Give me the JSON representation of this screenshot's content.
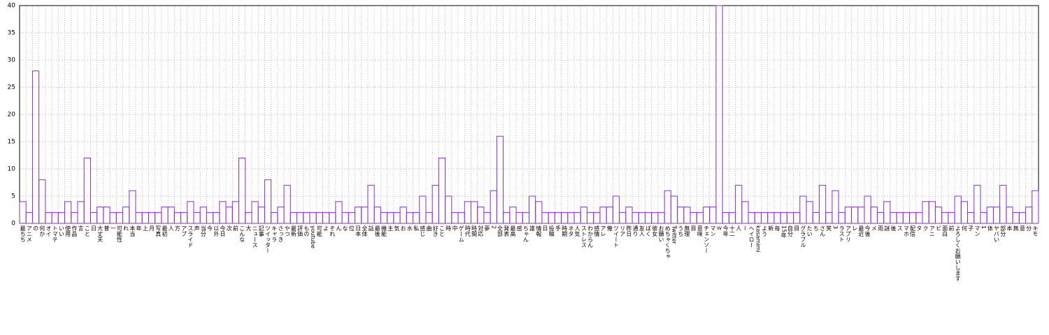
{
  "chart_data": {
    "type": "bar",
    "categories": [
      "最ちち",
      "アニメ",
      "の",
      "何か",
      "オイ",
      "トマテ",
      "いい",
      "使用",
      "作品",
      "言",
      "こと",
      "日",
      "大丈夫",
      "普",
      "一",
      "可能性",
      "れ",
      "本当",
      "年",
      "上",
      "月",
      "写真",
      "最初",
      "人",
      "方",
      "アプ",
      "スライド",
      "声",
      "当分",
      "今",
      "以外",
      "今日",
      "次",
      "前",
      "こんな",
      "大",
      "ニュース",
      "記事",
      "ツイッター",
      "キャラ",
      "さっき",
      "やつ",
      "最新",
      "評価",
      "もの",
      "youtube",
      "可能",
      "よ",
      "それ",
      "ん",
      "な",
      "位",
      "日本",
      "全体",
      "話",
      "最後",
      "機能",
      "主",
      "気",
      "お",
      "水",
      "私",
      "感じ",
      "曲",
      "好き",
      "こと",
      "時",
      "中",
      "ゲーム",
      "時代",
      "時間",
      "対応",
      "夢",
      "2",
      "全部",
      "発表",
      "最高",
      "感",
      "ちゃん",
      "誰",
      "情報",
      "日",
      "投稿",
      "手",
      "時期",
      "ネタ",
      "人気",
      "ストレス",
      "わからん",
      "感情",
      "アレ",
      "俺",
      "ツイート",
      "リア",
      "昨日",
      "通り",
      "友人",
      "ぼく",
      "彼女",
      "お願い",
      "めちゃくちゃ",
      "Twitter",
      "うち",
      "無理",
      "目",
      "意味",
      "チェンソー",
      "マン",
      "ｗ",
      "今年",
      "十二",
      "人",
      "ー",
      "ヘイロー",
      "kasamimi",
      "よう",
      "新",
      "毎",
      "15年",
      "自分",
      "目",
      "グラブル",
      "たい",
      "ち",
      "さん",
      "笑",
      "3",
      "ラスト",
      "アプリ",
      "レ",
      "最近",
      "今後",
      "メ",
      "雨",
      "謎",
      "後",
      "ス",
      "マホ",
      "配信",
      "タ",
      "ク",
      "アニ",
      "ビ",
      "面白",
      "前",
      "よろしくお願いします",
      "何",
      "子",
      "マン",
      "1",
      "体",
      "ヤバい",
      "部分",
      "本",
      "無",
      "意",
      "分",
      "キモ"
    ],
    "values": [
      4,
      2,
      28,
      8,
      2,
      2,
      2,
      4,
      2,
      4,
      12,
      2,
      3,
      3,
      2,
      2,
      3,
      6,
      2,
      2,
      2,
      2,
      3,
      3,
      2,
      2,
      4,
      2,
      3,
      2,
      2,
      4,
      3,
      4,
      12,
      2,
      4,
      3,
      8,
      2,
      3,
      7,
      2,
      2,
      2,
      2,
      2,
      2,
      2,
      4,
      2,
      2,
      3,
      3,
      7,
      3,
      2,
      2,
      2,
      3,
      2,
      2,
      5,
      2,
      7,
      12,
      5,
      2,
      2,
      4,
      4,
      3,
      2,
      6,
      16,
      2,
      3,
      2,
      2,
      5,
      4,
      2,
      2,
      2,
      2,
      2,
      2,
      3,
      2,
      2,
      3,
      3,
      5,
      2,
      3,
      2,
      2,
      2,
      2,
      2,
      6,
      5,
      3,
      3,
      2,
      2,
      3,
      3,
      40,
      2,
      2,
      7,
      4,
      2,
      2,
      2,
      2,
      2,
      2,
      2,
      2,
      5,
      4,
      2,
      7,
      2,
      6,
      2,
      3,
      3,
      3,
      5,
      3,
      2,
      4,
      2,
      2,
      2,
      2,
      2,
      4,
      4,
      3,
      2,
      2,
      5,
      4,
      2,
      7,
      2,
      3,
      3,
      7,
      3,
      2,
      2,
      3,
      6
    ],
    "color": "#8a2be2",
    "ylim": [
      0,
      40
    ],
    "yticks": [
      0,
      5,
      10,
      15,
      20,
      25,
      30,
      35,
      40
    ],
    "grid": true
  }
}
